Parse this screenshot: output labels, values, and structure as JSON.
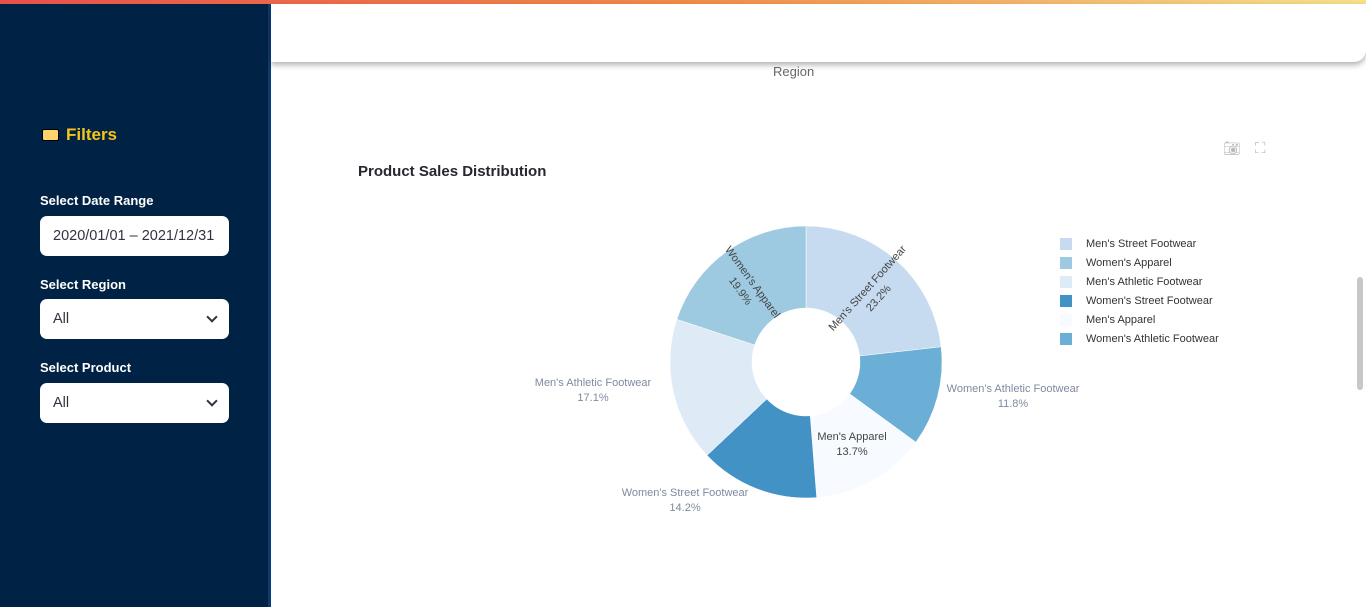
{
  "sidebar": {
    "title": "Filters",
    "date_label": "Select Date Range",
    "date_value": "2020/01/01 – 2021/12/31",
    "region_label": "Select Region",
    "region_value": "All",
    "product_label": "Select Product",
    "product_value": "All"
  },
  "main": {
    "region_axis_label": "Region"
  },
  "chart_data": {
    "type": "pie",
    "hole": true,
    "title": "Product Sales Distribution",
    "categories": [
      "Men's Street Footwear",
      "Women's Athletic Footwear",
      "Men's Apparel",
      "Women's Street Footwear",
      "Men's Athletic Footwear",
      "Women's Apparel"
    ],
    "values": [
      23.2,
      11.8,
      13.7,
      14.2,
      17.1,
      19.9
    ],
    "labels": [
      "23.2%",
      "11.8%",
      "13.7%",
      "14.2%",
      "17.1%",
      "19.9%"
    ],
    "colors": [
      "#c6dbef",
      "#6baed6",
      "#f7fbff",
      "#4292c6",
      "#deebf7",
      "#9ecae1"
    ],
    "legend": [
      "Men's Street Footwear",
      "Women's Apparel",
      "Men's Athletic Footwear",
      "Women's Street Footwear",
      "Men's Apparel",
      "Women's Athletic Footwear"
    ],
    "legend_colors": [
      "#c6dbef",
      "#9ecae1",
      "#deebf7",
      "#4292c6",
      "#f7fbff",
      "#6baed6"
    ],
    "legend_position": "top-right"
  }
}
